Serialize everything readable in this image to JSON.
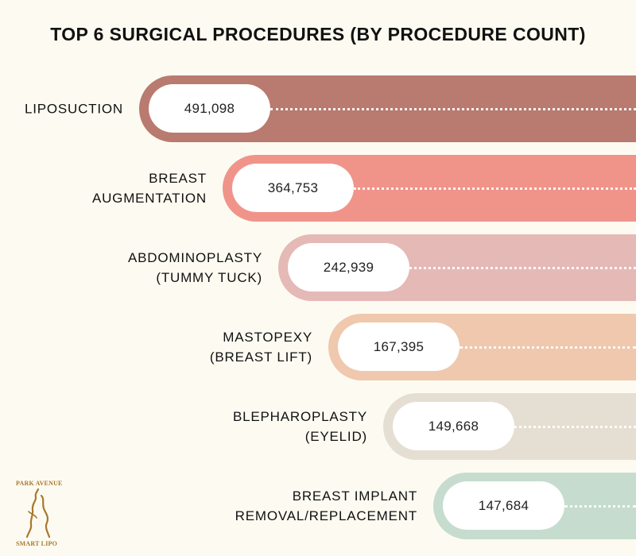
{
  "chart_data": {
    "type": "bar",
    "orientation": "horizontal",
    "title": "TOP 6 SURGICAL PROCEDURES (BY PROCEDURE COUNT)",
    "categories": [
      [
        "LIPOSUCTION"
      ],
      [
        "BREAST",
        "AUGMENTATION"
      ],
      [
        "ABDOMINOPLASTY",
        "(TUMMY TUCK)"
      ],
      [
        "MASTOPEXY",
        "(BREAST LIFT)"
      ],
      [
        "BLEPHAROPLASTY",
        "(EYELID)"
      ],
      [
        "BREAST IMPLANT",
        "REMOVAL/REPLACEMENT"
      ]
    ],
    "values": [
      491098,
      364753,
      242939,
      167395,
      149668,
      147684
    ],
    "value_labels": [
      "491,098",
      "364,753",
      "242,939",
      "167,395",
      "149,668",
      "147,684"
    ],
    "colors": [
      "#b97a70",
      "#f0948a",
      "#e5b9b6",
      "#efc8ad",
      "#e5ded2",
      "#c6dccf"
    ]
  },
  "logo": {
    "line1": "PARK AVENUE",
    "line2": "SMART LIPO"
  }
}
